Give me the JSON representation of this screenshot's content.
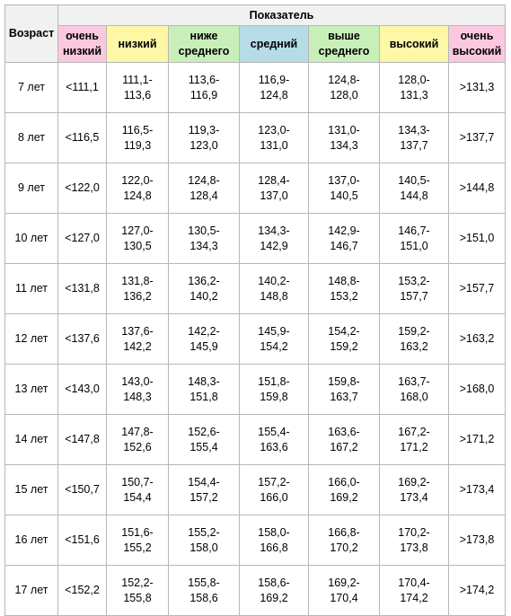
{
  "header": {
    "age_label": "Возраст",
    "group_label": "Показатель",
    "columns": [
      {
        "line1": "очень",
        "line2": "низкий"
      },
      {
        "line1": "низкий",
        "line2": ""
      },
      {
        "line1": "ниже",
        "line2": "среднего"
      },
      {
        "line1": "средний",
        "line2": ""
      },
      {
        "line1": "выше",
        "line2": "среднего"
      },
      {
        "line1": "высокий",
        "line2": ""
      },
      {
        "line1": "очень",
        "line2": "высокий"
      }
    ]
  },
  "rows": [
    {
      "age": "7 лет",
      "vlow": "<111,1",
      "low": [
        "111,1-",
        "113,6"
      ],
      "blow": [
        "113,6-",
        "116,9"
      ],
      "mid": [
        "116,9-",
        "124,8"
      ],
      "alow": [
        "124,8-",
        "128,0"
      ],
      "high": [
        "128,0-",
        "131,3"
      ],
      "vhigh": ">131,3"
    },
    {
      "age": "8 лет",
      "vlow": "<116,5",
      "low": [
        "116,5-",
        "119,3"
      ],
      "blow": [
        "119,3-",
        "123,0"
      ],
      "mid": [
        "123,0-",
        "131,0"
      ],
      "alow": [
        "131,0-",
        "134,3"
      ],
      "high": [
        "134,3-",
        "137,7"
      ],
      "vhigh": ">137,7"
    },
    {
      "age": "9 лет",
      "vlow": "<122,0",
      "low": [
        "122,0-",
        "124,8"
      ],
      "blow": [
        "124,8-",
        "128,4"
      ],
      "mid": [
        "128,4-",
        "137,0"
      ],
      "alow": [
        "137,0-",
        "140,5"
      ],
      "high": [
        "140,5-",
        "144,8"
      ],
      "vhigh": ">144,8"
    },
    {
      "age": "10 лет",
      "vlow": "<127,0",
      "low": [
        "127,0-",
        "130,5"
      ],
      "blow": [
        "130,5-",
        "134,3"
      ],
      "mid": [
        "134,3-",
        "142,9"
      ],
      "alow": [
        "142,9-",
        "146,7"
      ],
      "high": [
        "146,7-",
        "151,0"
      ],
      "vhigh": ">151,0"
    },
    {
      "age": "11 лет",
      "vlow": "<131,8",
      "low": [
        "131,8-",
        "136,2"
      ],
      "blow": [
        "136,2-",
        "140,2"
      ],
      "mid": [
        "140,2-",
        "148,8"
      ],
      "alow": [
        "148,8-",
        "153,2"
      ],
      "high": [
        "153,2-",
        "157,7"
      ],
      "vhigh": ">157,7"
    },
    {
      "age": "12 лет",
      "vlow": "<137,6",
      "low": [
        "137,6-",
        "142,2"
      ],
      "blow": [
        "142,2-",
        "145,9"
      ],
      "mid": [
        "145,9-",
        "154,2"
      ],
      "alow": [
        "154,2-",
        "159,2"
      ],
      "high": [
        "159,2-",
        "163,2"
      ],
      "vhigh": ">163,2"
    },
    {
      "age": "13 лет",
      "vlow": "<143,0",
      "low": [
        "143,0-",
        "148,3"
      ],
      "blow": [
        "148,3-",
        "151,8"
      ],
      "mid": [
        "151,8-",
        "159,8"
      ],
      "alow": [
        "159,8-",
        "163,7"
      ],
      "high": [
        "163,7-",
        "168,0"
      ],
      "vhigh": ">168,0"
    },
    {
      "age": "14 лет",
      "vlow": "<147,8",
      "low": [
        "147,8-",
        "152,6"
      ],
      "blow": [
        "152,6-",
        "155,4"
      ],
      "mid": [
        "155,4-",
        "163,6"
      ],
      "alow": [
        "163,6-",
        "167,2"
      ],
      "high": [
        "167,2-",
        "171,2"
      ],
      "vhigh": ">171,2"
    },
    {
      "age": "15 лет",
      "vlow": "<150,7",
      "low": [
        "150,7-",
        "154,4"
      ],
      "blow": [
        "154,4-",
        "157,2"
      ],
      "mid": [
        "157,2-",
        "166,0"
      ],
      "alow": [
        "166,0-",
        "169,2"
      ],
      "high": [
        "169,2-",
        "173,4"
      ],
      "vhigh": ">173,4"
    },
    {
      "age": "16 лет",
      "vlow": "<151,6",
      "low": [
        "151,6-",
        "155,2"
      ],
      "blow": [
        "155,2-",
        "158,0"
      ],
      "mid": [
        "158,0-",
        "166,8"
      ],
      "alow": [
        "166,8-",
        "170,2"
      ],
      "high": [
        "170,2-",
        "173,8"
      ],
      "vhigh": ">173,8"
    },
    {
      "age": "17 лет",
      "vlow": "<152,2",
      "low": [
        "152,2-",
        "155,8"
      ],
      "blow": [
        "155,8-",
        "158,6"
      ],
      "mid": [
        "158,6-",
        "169,2"
      ],
      "alow": [
        "169,2-",
        "170,4"
      ],
      "high": [
        "170,4-",
        "174,2"
      ],
      "vhigh": ">174,2"
    }
  ],
  "colors": {
    "very_low_bg": "#fbc8df",
    "low_bg": "#fdf7a6",
    "below_avg_bg": "#c9efb9",
    "avg_bg": "#b6dce8",
    "above_avg_bg": "#c9efb9",
    "high_bg": "#fdf7a6",
    "very_high_bg": "#fbc8df",
    "header_bg": "#f1f1f1"
  }
}
